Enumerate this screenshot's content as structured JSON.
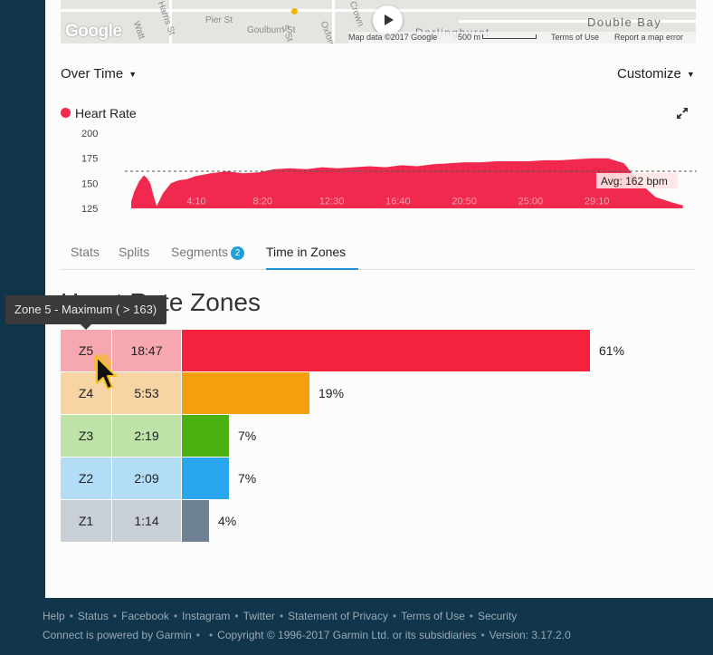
{
  "map": {
    "logo": "Google",
    "streets": [
      "Watt",
      "Harris St",
      "Pier St",
      "Goulburn St",
      "S St",
      "Oxford",
      "Crown",
      "Darlinghurst"
    ],
    "area_label": "Double Bay",
    "attribution": "Map data ©2017 Google",
    "scale_label": "500 m",
    "terms": "Terms of Use",
    "report": "Report a map error"
  },
  "chart_controls": {
    "view_select": "Over Time",
    "customize": "Customize"
  },
  "chart_data": {
    "type": "area",
    "series": [
      {
        "name": "Heart Rate",
        "color": "#f2294e"
      }
    ],
    "y_ticks": [
      200,
      175,
      150,
      125
    ],
    "ylim": [
      125,
      200
    ],
    "x_ticks": [
      "4:10",
      "8:20",
      "12:30",
      "16:40",
      "20:50",
      "25:00",
      "29:10"
    ],
    "avg_label": "Avg: 162 bpm",
    "avg_value": 162,
    "points": [
      [
        0,
        132
      ],
      [
        0.2,
        142
      ],
      [
        0.5,
        152
      ],
      [
        0.8,
        158
      ],
      [
        1,
        155
      ],
      [
        1.2,
        150
      ],
      [
        1.4,
        138
      ],
      [
        1.6,
        127
      ],
      [
        2,
        140
      ],
      [
        2.5,
        150
      ],
      [
        3,
        153
      ],
      [
        3.5,
        154
      ],
      [
        4,
        157
      ],
      [
        5,
        160
      ],
      [
        6,
        162
      ],
      [
        7,
        160
      ],
      [
        8,
        161
      ],
      [
        9,
        164
      ],
      [
        10,
        165
      ],
      [
        11,
        164
      ],
      [
        12,
        166
      ],
      [
        13,
        165
      ],
      [
        14,
        166
      ],
      [
        15,
        167
      ],
      [
        16,
        166
      ],
      [
        17,
        168
      ],
      [
        18,
        167
      ],
      [
        19,
        169
      ],
      [
        20,
        170
      ],
      [
        21,
        171
      ],
      [
        22,
        171
      ],
      [
        23,
        172
      ],
      [
        24,
        172
      ],
      [
        25,
        172
      ],
      [
        26,
        173
      ],
      [
        27,
        173
      ],
      [
        28,
        174
      ],
      [
        29,
        175
      ],
      [
        30,
        175
      ],
      [
        31,
        170
      ],
      [
        32,
        150
      ],
      [
        33,
        136
      ],
      [
        34,
        131
      ],
      [
        34.7,
        128
      ]
    ],
    "x_max": 35
  },
  "legend": {
    "label": "Heart Rate",
    "color": "#f2294e"
  },
  "tabs": [
    {
      "label": "Stats"
    },
    {
      "label": "Splits"
    },
    {
      "label": "Segments",
      "badge": "2"
    },
    {
      "label": "Time in Zones",
      "active": true
    }
  ],
  "zones": {
    "title": "Heart Rate Zones",
    "rows": [
      {
        "id": "Z5",
        "time": "18:47",
        "percent": "61%",
        "value": 61,
        "bar_color": "#f4223f",
        "cell_color": "#f7a7b0"
      },
      {
        "id": "Z4",
        "time": "5:53",
        "percent": "19%",
        "value": 19,
        "bar_color": "#f59f0f",
        "cell_color": "#f7d4a4"
      },
      {
        "id": "Z3",
        "time": "2:19",
        "percent": "7%",
        "value": 7,
        "bar_color": "#49b210",
        "cell_color": "#bde3a9"
      },
      {
        "id": "Z2",
        "time": "2:09",
        "percent": "7%",
        "value": 7,
        "bar_color": "#29a6ee",
        "cell_color": "#b3dcf6"
      },
      {
        "id": "Z1",
        "time": "1:14",
        "percent": "4%",
        "value": 4,
        "bar_color": "#6e8293",
        "cell_color": "#c9cfd6"
      }
    ]
  },
  "tooltip": "Zone 5 - Maximum ( > 163)",
  "footer": {
    "links": [
      "Help",
      "Status",
      "Facebook",
      "Instagram",
      "Twitter",
      "Statement of Privacy",
      "Terms of Use",
      "Security"
    ],
    "powered": "Connect is powered by Garmin",
    "copyright": "Copyright © 1996-2017 Garmin Ltd. or its subsidiaries",
    "version": "Version: 3.17.2.0"
  }
}
